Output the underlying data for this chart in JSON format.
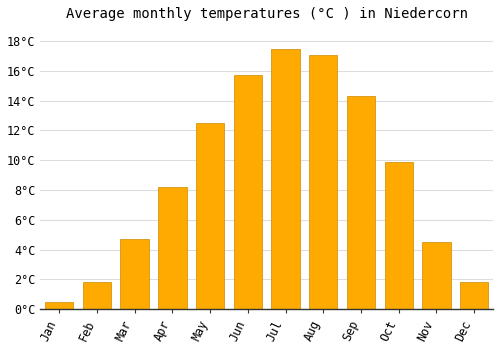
{
  "months": [
    "Jan",
    "Feb",
    "Mar",
    "Apr",
    "May",
    "Jun",
    "Jul",
    "Aug",
    "Sep",
    "Oct",
    "Nov",
    "Dec"
  ],
  "values": [
    0.5,
    1.8,
    4.7,
    8.2,
    12.5,
    15.7,
    17.5,
    17.1,
    14.3,
    9.9,
    4.5,
    1.8
  ],
  "bar_color": "#FFAA00",
  "bar_edge_color": "#CC8800",
  "title": "Average monthly temperatures (°C ) in Niedercorn",
  "ylim": [
    0,
    19
  ],
  "ytick_values": [
    0,
    2,
    4,
    6,
    8,
    10,
    12,
    14,
    16,
    18
  ],
  "background_color": "#FFFFFF",
  "plot_bg_color": "#FFFFFF",
  "grid_color": "#DDDDDD",
  "title_fontsize": 10,
  "tick_fontsize": 8.5
}
